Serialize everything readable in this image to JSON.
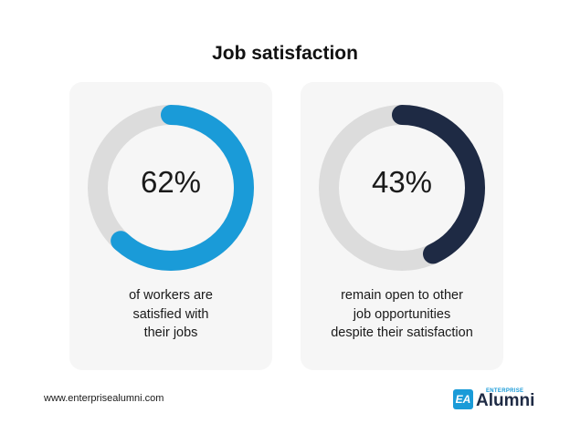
{
  "title": "Job satisfaction",
  "chart_data": [
    {
      "type": "pie",
      "variant": "donut",
      "value": 62,
      "value_label": "62%",
      "caption": [
        "of workers are",
        "satisfied with",
        "their jobs"
      ],
      "color": "#1a9bd8",
      "track_color": "#dcdcdc"
    },
    {
      "type": "pie",
      "variant": "donut",
      "value": 43,
      "value_label": "43%",
      "caption": [
        "remain open to other",
        "job opportunities",
        "despite their satisfaction"
      ],
      "color": "#1e2a44",
      "track_color": "#dcdcdc"
    }
  ],
  "footer": {
    "url": "www.enterprisealumni.com",
    "logo": {
      "mark": "EA",
      "small_text": "ENTERPRISE",
      "big_text": "Alumni",
      "mark_color": "#1a9bd8",
      "text_color": "#1e2a44"
    }
  }
}
